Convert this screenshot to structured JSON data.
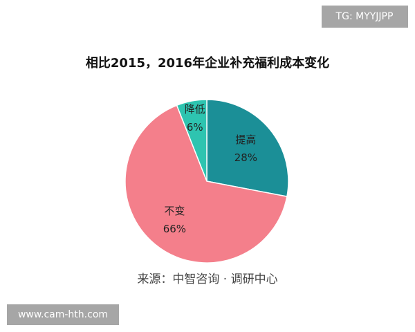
{
  "chart_data": {
    "type": "pie",
    "title": "相比2015，2016年企业补充福利成本变化",
    "categories": [
      "提高",
      "不变",
      "降低"
    ],
    "values": [
      28,
      66,
      6
    ],
    "value_labels": [
      "28%",
      "66%",
      "6%"
    ],
    "colors": [
      "#1b8f97",
      "#f47f8b",
      "#2ec4b0"
    ],
    "source": "来源：中智咨询 · 调研中心",
    "watermark_top": "TG: MYYJJPP",
    "watermark_bottom": "www.cam-hth.com"
  }
}
